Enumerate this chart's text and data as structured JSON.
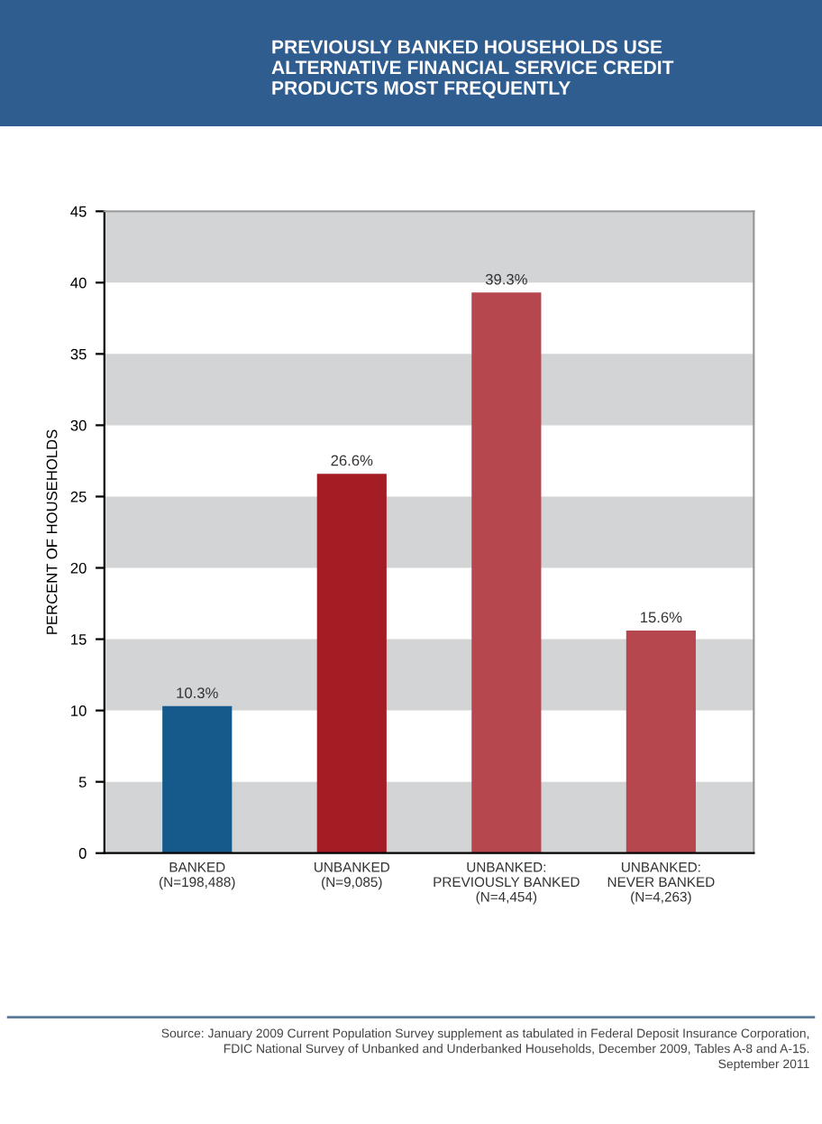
{
  "chart_data": {
    "type": "bar",
    "title": "PREVIOUSLY BANKED HOUSEHOLDS USE\nALTERNATIVE FINANCIAL SERVICE CREDIT\nPRODUCTS MOST FREQUENTLY",
    "ylabel": "PERCENT OF HOUSEHOLDS",
    "categories": [
      "BANKED\n(N=198,488)",
      "UNBANKED\n(N=9,085)",
      "UNBANKED:\nPREVIOUSLY BANKED\n(N=4,454)",
      "UNBANKED:\nNEVER BANKED\n(N=4,263)"
    ],
    "values": [
      10.3,
      26.6,
      39.3,
      15.6
    ],
    "colors": [
      "#165a8c",
      "#a51d24",
      "#b6474e",
      "#b6474e"
    ],
    "value_labels": [
      "10.3%",
      "26.6%",
      "39.3%",
      "15.6%"
    ],
    "ylim": [
      0,
      45
    ],
    "yticks": [
      0,
      5,
      10,
      15,
      20,
      25,
      30,
      35,
      40,
      45
    ],
    "bands": [
      {
        "axis": "y",
        "from": 0,
        "to": 5,
        "label": null,
        "color": "#d3d4d6"
      },
      {
        "axis": "y",
        "from": 10,
        "to": 15,
        "label": null,
        "color": "#d3d4d6"
      },
      {
        "axis": "y",
        "from": 20,
        "to": 25,
        "label": null,
        "color": "#d3d4d6"
      },
      {
        "axis": "y",
        "from": 30,
        "to": 35,
        "label": null,
        "color": "#d3d4d6"
      },
      {
        "axis": "y",
        "from": 40,
        "to": 45,
        "label": null,
        "color": "#d3d4d6"
      }
    ],
    "annotations": [
      "Source: January 2009 Current Population Survey supplement as tabulated in Federal Deposit Insurance Corporation,\nFDIC National Survey of Unbanked and Underbanked Households, December 2009, Tables A-8 and A-15.\nSeptember 2011"
    ]
  }
}
